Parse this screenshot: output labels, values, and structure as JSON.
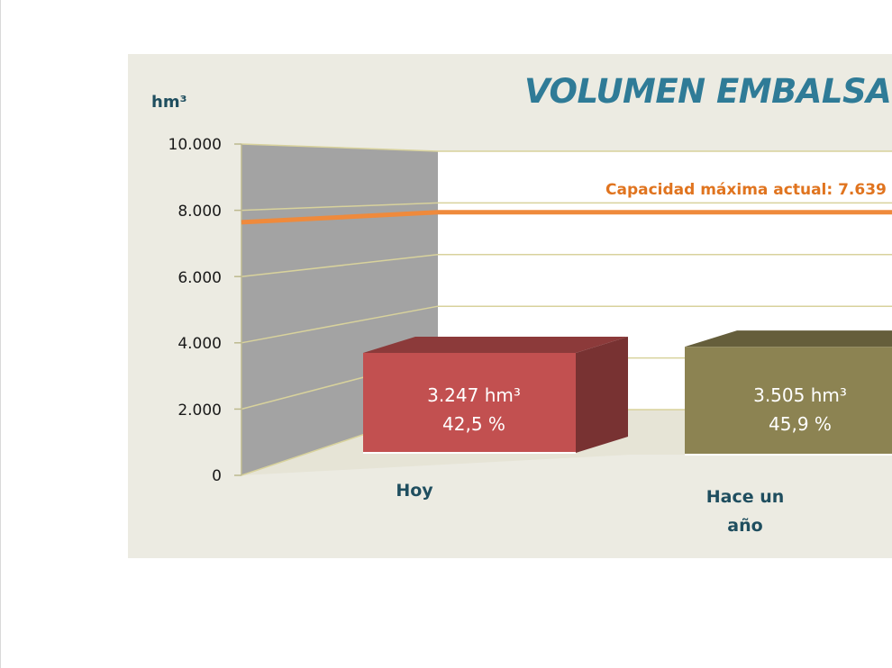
{
  "chart_data": {
    "type": "bar",
    "title": "VOLUMEN EMBALSA",
    "ylabel": "hm³",
    "ylim": [
      0,
      10000
    ],
    "yticks": [
      "10.000",
      "8.000",
      "6.000",
      "4.000",
      "2.000",
      "0"
    ],
    "categories": [
      "Hoy",
      "Hace un año"
    ],
    "values": [
      3247,
      3505
    ],
    "value_labels": [
      "3.247 hm³",
      "3.505 hm³"
    ],
    "percent_labels": [
      "42,5 %",
      "45,9 %"
    ],
    "colors": [
      "#c25050",
      "#8c8352"
    ],
    "reference_line": {
      "label": "Capacidad máxima actual: 7.639",
      "value": 7639,
      "color": "#ef8a3c"
    },
    "grid": true
  }
}
